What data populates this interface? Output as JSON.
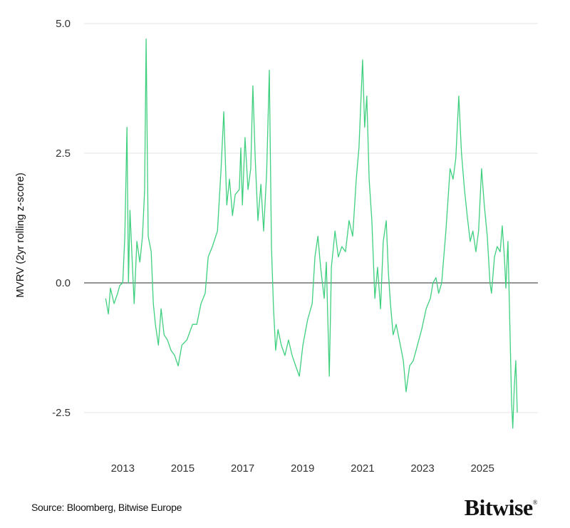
{
  "source": "Source: Bloomberg, Bitwise Europe",
  "logo": {
    "text": "Bitwise",
    "mark": "®"
  },
  "chart_data": {
    "type": "line",
    "title": "",
    "xlabel": "",
    "ylabel": "MVRV (2yr rolling z-score)",
    "xlim": [
      2011.71,
      2026.85
    ],
    "ylim": [
      -3.2,
      5.0
    ],
    "yticks": [
      5.0,
      2.5,
      0.0,
      -2.5
    ],
    "ytick_labels": [
      "5.0",
      "2.5",
      "0.0",
      "-2.5"
    ],
    "xticks": [
      2013,
      2015,
      2017,
      2019,
      2021,
      2023,
      2025
    ],
    "xtick_labels": [
      "2013",
      "2015",
      "2017",
      "2019",
      "2021",
      "2023",
      "2025"
    ],
    "grid": "horizontal",
    "zero_line": true,
    "line_color": "#3fd07f",
    "grid_color": "#e4e4e4",
    "zero_color": "#555555",
    "series": [
      {
        "x": [
          2012.43,
          2012.52,
          2012.59,
          2012.71,
          2012.83,
          2012.9,
          2013.0,
          2013.07,
          2013.14,
          2013.19,
          2013.24,
          2013.31,
          2013.38,
          2013.47,
          2013.57,
          2013.66,
          2013.73,
          2013.78,
          2013.85,
          2013.95,
          2014.02,
          2014.09,
          2014.19,
          2014.28,
          2014.38,
          2014.49,
          2014.61,
          2014.73,
          2014.85,
          2014.97,
          2015.14,
          2015.33,
          2015.47,
          2015.61,
          2015.75,
          2015.85,
          2015.99,
          2016.16,
          2016.28,
          2016.37,
          2016.47,
          2016.56,
          2016.66,
          2016.75,
          2016.89,
          2016.94,
          2016.99,
          2017.08,
          2017.18,
          2017.27,
          2017.34,
          2017.42,
          2017.51,
          2017.61,
          2017.7,
          2017.8,
          2017.89,
          2017.96,
          2018.03,
          2018.1,
          2018.18,
          2018.29,
          2018.41,
          2018.53,
          2018.65,
          2018.77,
          2018.89,
          2019.01,
          2019.17,
          2019.32,
          2019.41,
          2019.51,
          2019.6,
          2019.72,
          2019.79,
          2019.89,
          2019.96,
          2020.08,
          2020.19,
          2020.31,
          2020.43,
          2020.55,
          2020.67,
          2020.79,
          2020.88,
          2021.0,
          2021.07,
          2021.14,
          2021.22,
          2021.31,
          2021.41,
          2021.5,
          2021.6,
          2021.69,
          2021.79,
          2021.86,
          2021.93,
          2022.02,
          2022.12,
          2022.26,
          2022.36,
          2022.45,
          2022.57,
          2022.69,
          2022.83,
          2022.97,
          2023.12,
          2023.26,
          2023.35,
          2023.45,
          2023.54,
          2023.64,
          2023.78,
          2023.92,
          2024.02,
          2024.11,
          2024.21,
          2024.3,
          2024.4,
          2024.49,
          2024.59,
          2024.68,
          2024.78,
          2024.87,
          2024.97,
          2025.06,
          2025.16,
          2025.25,
          2025.3,
          2025.4,
          2025.49,
          2025.59,
          2025.66,
          2025.73,
          2025.78,
          2025.85,
          2025.92,
          2025.97,
          2026.01,
          2026.06,
          2026.11,
          2026.16
        ],
        "y": [
          -0.3,
          -0.6,
          -0.1,
          -0.4,
          -0.2,
          -0.05,
          0.0,
          0.9,
          3.0,
          0.0,
          1.4,
          0.5,
          -0.4,
          0.8,
          0.4,
          0.9,
          1.8,
          4.7,
          0.9,
          0.6,
          -0.4,
          -0.8,
          -1.2,
          -0.5,
          -1.0,
          -1.1,
          -1.3,
          -1.4,
          -1.6,
          -1.2,
          -1.1,
          -0.8,
          -0.8,
          -0.4,
          -0.2,
          0.5,
          0.7,
          1.0,
          2.2,
          3.3,
          1.5,
          2.0,
          1.3,
          1.7,
          1.8,
          2.6,
          1.5,
          2.8,
          1.8,
          2.2,
          3.8,
          2.4,
          1.2,
          1.9,
          1.0,
          2.1,
          4.1,
          0.7,
          -0.5,
          -1.3,
          -0.9,
          -1.2,
          -1.4,
          -1.1,
          -1.4,
          -1.6,
          -1.8,
          -1.2,
          -0.7,
          -0.4,
          0.5,
          0.9,
          0.3,
          -0.3,
          0.4,
          -1.8,
          0.3,
          1.0,
          0.5,
          0.7,
          0.6,
          1.2,
          0.9,
          2.0,
          2.6,
          4.3,
          3.0,
          3.6,
          2.0,
          1.2,
          -0.3,
          0.3,
          -0.5,
          0.8,
          1.2,
          0.2,
          -0.4,
          -1.0,
          -0.8,
          -1.2,
          -1.5,
          -2.1,
          -1.6,
          -1.5,
          -1.2,
          -0.9,
          -0.5,
          -0.3,
          0.0,
          0.1,
          -0.2,
          0.0,
          1.0,
          2.2,
          2.0,
          2.4,
          3.6,
          2.5,
          1.8,
          1.3,
          0.8,
          1.0,
          0.6,
          1.0,
          2.2,
          1.5,
          0.9,
          0.0,
          -0.2,
          0.5,
          0.7,
          0.6,
          1.1,
          0.5,
          -0.1,
          0.8,
          -1.0,
          -2.3,
          -2.8,
          -2.0,
          -1.5,
          -2.5
        ]
      }
    ]
  }
}
